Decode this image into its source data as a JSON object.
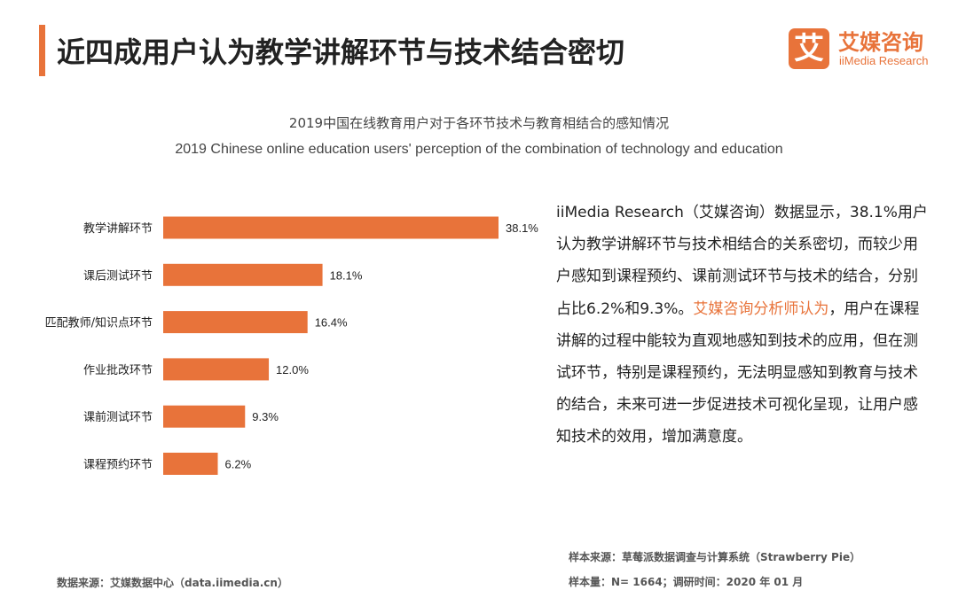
{
  "header": {
    "title": "近四成用户认为教学讲解环节与技术结合密切",
    "accent_color": "#e8733a"
  },
  "logo": {
    "glyph": "艾",
    "name_cn": "艾媒咨询",
    "name_en": "iiMedia Research"
  },
  "chart_data": {
    "type": "bar",
    "orientation": "horizontal",
    "title": "2019中国在线教育用户对于各环节技术与教育相结合的感知情况",
    "subtitle": "2019 Chinese online education users' perception of the combination of technology and education",
    "categories": [
      "教学讲解环节",
      "课后测试环节",
      "匹配教师/知识点环节",
      "作业批改环节",
      "课前测试环节",
      "课程预约环节"
    ],
    "values": [
      38.1,
      18.1,
      16.4,
      12.0,
      9.3,
      6.2
    ],
    "value_labels": [
      "38.1%",
      "18.1%",
      "16.4%",
      "12.0%",
      "9.3%",
      "6.2%"
    ],
    "unit": "%",
    "xlim": [
      0,
      38.1
    ],
    "bar_color": "#e8733a",
    "grid": false,
    "legend": "none"
  },
  "description": {
    "part1": "iiMedia Research（艾媒咨询）数据显示，38.1%用户认为教学讲解环节与技术相结合的关系密切，而较少用户感知到课程预约、课前测试环节与技术的结合，分别占比6.2%和9.3%。",
    "highlight": "艾媒咨询分析师认为",
    "part2": "，用户在课程讲解的过程中能较为直观地感知到技术的应用，但在测试环节，特别是课程预约，无法明显感知到教育与技术的结合，未来可进一步促进技术可视化呈现，让用户感知技术的效用，增加满意度。"
  },
  "footer": {
    "data_source": "数据来源：艾媒数据中心（data.iimedia.cn）",
    "sample_source": "样本来源：草莓派数据调查与计算系统（Strawberry Pie）",
    "sample_info": "样本量：N= 1664；调研时间：2020 年 01 月"
  }
}
